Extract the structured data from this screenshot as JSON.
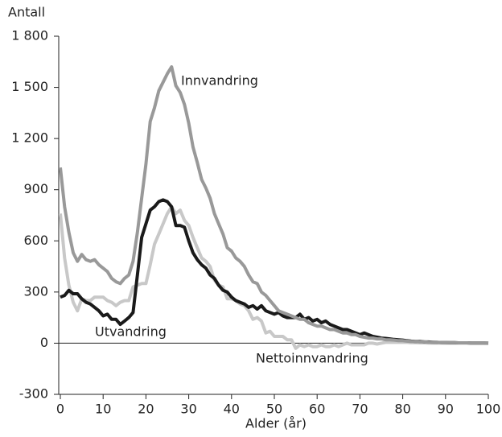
{
  "chart_data": {
    "type": "line",
    "y_label": "Antall",
    "x_label": "Alder (år)",
    "x": [
      0,
      1,
      2,
      3,
      4,
      5,
      6,
      7,
      8,
      9,
      10,
      11,
      12,
      13,
      14,
      15,
      16,
      17,
      18,
      19,
      20,
      21,
      22,
      23,
      24,
      25,
      26,
      27,
      28,
      29,
      30,
      31,
      32,
      33,
      34,
      35,
      36,
      37,
      38,
      39,
      40,
      41,
      42,
      43,
      44,
      45,
      46,
      47,
      48,
      49,
      50,
      51,
      52,
      53,
      54,
      55,
      56,
      57,
      58,
      59,
      60,
      61,
      62,
      63,
      64,
      65,
      66,
      67,
      68,
      69,
      70,
      71,
      72,
      73,
      74,
      75,
      76,
      77,
      78,
      79,
      80,
      81,
      82,
      83,
      84,
      85,
      86,
      87,
      88,
      89,
      90,
      91,
      92,
      93,
      94,
      95,
      96,
      97,
      98,
      99,
      100
    ],
    "series": [
      {
        "name": "Nettoinnvandring",
        "color": "#c8c8c8",
        "values": [
          760,
          500,
          340,
          240,
          190,
          260,
          250,
          250,
          270,
          270,
          270,
          250,
          240,
          220,
          240,
          250,
          250,
          330,
          340,
          350,
          350,
          460,
          580,
          640,
          700,
          760,
          800,
          760,
          780,
          720,
          690,
          620,
          560,
          500,
          480,
          450,
          370,
          340,
          330,
          260,
          260,
          250,
          230,
          220,
          190,
          140,
          150,
          130,
          60,
          70,
          40,
          40,
          40,
          20,
          20,
          -30,
          -10,
          -20,
          -10,
          -20,
          -20,
          -10,
          -20,
          -20,
          -10,
          -20,
          -10,
          0,
          -10,
          -10,
          -10,
          -10,
          0,
          0,
          -5,
          0,
          5,
          5,
          5,
          5,
          5,
          5,
          3,
          3,
          2,
          2,
          1,
          1,
          1,
          1,
          0,
          0,
          0,
          0,
          0,
          0,
          0,
          0,
          0,
          0,
          0
        ]
      },
      {
        "name": "Utvandring",
        "color": "#1a1a1a",
        "values": [
          270,
          280,
          310,
          290,
          290,
          260,
          240,
          230,
          210,
          190,
          160,
          170,
          140,
          140,
          110,
          130,
          150,
          180,
          400,
          620,
          700,
          780,
          800,
          830,
          840,
          830,
          800,
          690,
          690,
          680,
          600,
          530,
          490,
          460,
          440,
          400,
          380,
          340,
          310,
          300,
          270,
          250,
          240,
          230,
          210,
          220,
          200,
          220,
          190,
          180,
          170,
          180,
          160,
          150,
          150,
          150,
          170,
          140,
          150,
          130,
          140,
          120,
          130,
          110,
          100,
          90,
          80,
          80,
          70,
          60,
          50,
          60,
          50,
          40,
          35,
          30,
          28,
          25,
          22,
          20,
          18,
          15,
          12,
          10,
          10,
          8,
          7,
          6,
          5,
          4,
          4,
          3,
          3,
          2,
          2,
          2,
          1,
          1,
          1,
          1,
          0
        ]
      },
      {
        "name": "Innvandring",
        "color": "#999999",
        "values": [
          1030,
          800,
          650,
          530,
          480,
          520,
          490,
          480,
          490,
          460,
          440,
          420,
          380,
          360,
          350,
          380,
          400,
          480,
          650,
          850,
          1050,
          1300,
          1380,
          1480,
          1530,
          1580,
          1620,
          1510,
          1470,
          1400,
          1290,
          1150,
          1060,
          960,
          910,
          850,
          760,
          700,
          640,
          560,
          540,
          500,
          480,
          450,
          400,
          360,
          350,
          300,
          280,
          250,
          220,
          190,
          180,
          170,
          160,
          150,
          140,
          140,
          120,
          110,
          100,
          100,
          90,
          80,
          80,
          70,
          60,
          60,
          50,
          50,
          40,
          35,
          30,
          30,
          25,
          25,
          20,
          20,
          18,
          15,
          15,
          12,
          10,
          10,
          8,
          8,
          6,
          5,
          5,
          4,
          4,
          3,
          3,
          2,
          2,
          2,
          1,
          1,
          1,
          1,
          0
        ]
      }
    ],
    "xlim": [
      0,
      100
    ],
    "xticks": [
      0,
      10,
      20,
      30,
      40,
      50,
      60,
      70,
      80,
      90,
      100
    ],
    "ylim": [
      -300,
      1800
    ],
    "yticks": [
      -300,
      0,
      300,
      600,
      900,
      {
        "value": 1200,
        "label": "1 200"
      },
      {
        "value": 1500,
        "label": "1 500"
      },
      {
        "value": 1800,
        "label": "1 800"
      }
    ],
    "zero_line": true
  }
}
